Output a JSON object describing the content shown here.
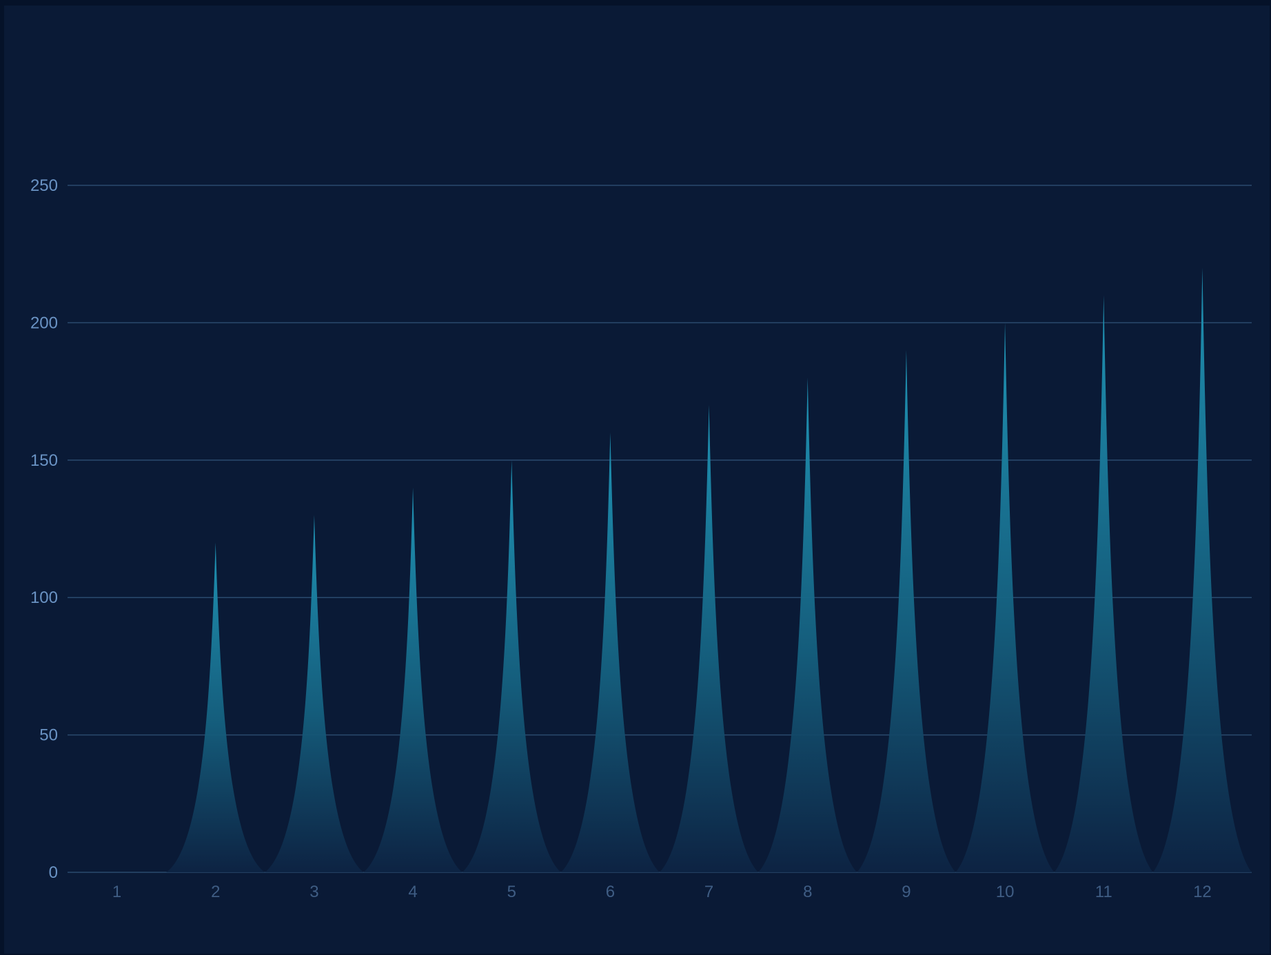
{
  "chart_data": {
    "type": "bar",
    "bar_shape": "pictorial-spike",
    "categories": [
      "1",
      "2",
      "3",
      "4",
      "5",
      "6",
      "7",
      "8",
      "9",
      "10",
      "11",
      "12"
    ],
    "values": [
      0,
      120,
      130,
      140,
      150,
      160,
      170,
      180,
      190,
      200,
      210,
      220
    ],
    "y_ticks": [
      "0",
      "50",
      "100",
      "150",
      "200",
      "250"
    ],
    "ylim": [
      0,
      250
    ],
    "grid": true,
    "legend": "none",
    "title": "",
    "xlabel": "",
    "ylabel": "",
    "colors": {
      "background": "#0a1a36",
      "outer": "#051229",
      "grid": "#2a4a6e",
      "y_tick_text": "#6a93c4",
      "x_tick_text": "#3f5d84",
      "spike_top": "#1f93b4",
      "spike_bottom": "#0d2444"
    }
  }
}
